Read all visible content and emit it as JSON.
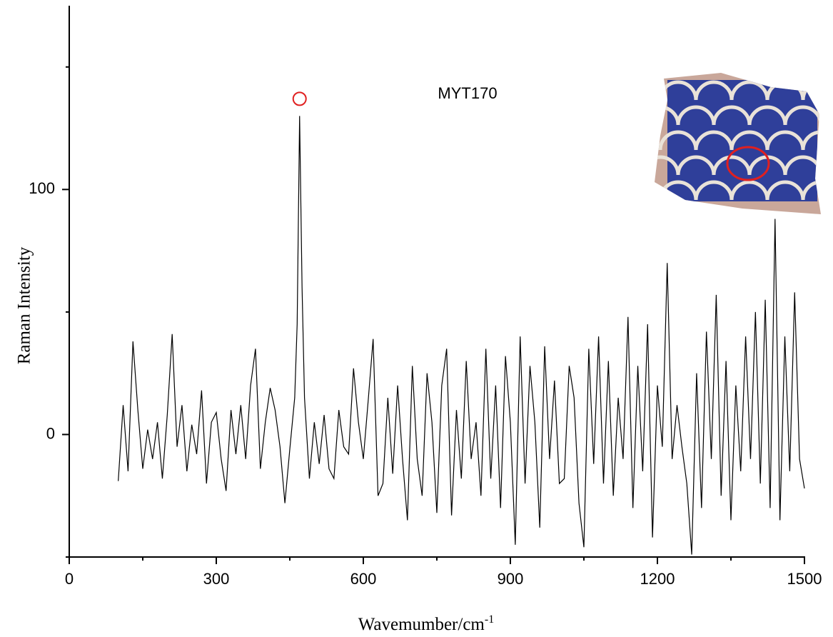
{
  "chart_data": {
    "type": "line",
    "annotation": "MYT170",
    "xlabel": "Wavemumber/cm",
    "xlabel_superscript": "-1",
    "ylabel": "Raman Intensity",
    "xlim": [
      0,
      1500
    ],
    "ylim": [
      -50,
      175
    ],
    "xticks": [
      0,
      300,
      600,
      900,
      1200,
      1500
    ],
    "xminorticks": [
      150,
      450,
      750,
      1050,
      1350
    ],
    "yticks": [
      0,
      100
    ],
    "yminorticks": [
      -50,
      50,
      150
    ],
    "highlight": {
      "x": 470,
      "y": 137,
      "color": "#e02020"
    },
    "series": [
      {
        "color": "#000000",
        "x": [
          100,
          110,
          120,
          130,
          140,
          150,
          160,
          170,
          180,
          190,
          200,
          210,
          220,
          230,
          240,
          250,
          260,
          270,
          280,
          290,
          300,
          310,
          320,
          330,
          340,
          350,
          360,
          370,
          380,
          390,
          400,
          410,
          420,
          430,
          440,
          450,
          460,
          465,
          470,
          475,
          480,
          490,
          500,
          510,
          520,
          530,
          540,
          550,
          560,
          570,
          580,
          590,
          600,
          610,
          620,
          630,
          640,
          650,
          660,
          670,
          680,
          690,
          700,
          710,
          720,
          730,
          740,
          750,
          760,
          770,
          780,
          790,
          800,
          810,
          820,
          830,
          840,
          850,
          860,
          870,
          880,
          890,
          900,
          910,
          920,
          930,
          940,
          950,
          960,
          970,
          980,
          990,
          1000,
          1010,
          1020,
          1030,
          1040,
          1050,
          1060,
          1070,
          1080,
          1090,
          1100,
          1110,
          1120,
          1130,
          1140,
          1150,
          1160,
          1170,
          1180,
          1190,
          1200,
          1210,
          1220,
          1230,
          1240,
          1250,
          1260,
          1270,
          1280,
          1290,
          1300,
          1310,
          1320,
          1330,
          1340,
          1350,
          1360,
          1370,
          1380,
          1390,
          1400,
          1410,
          1420,
          1430,
          1440,
          1450,
          1460,
          1470,
          1480,
          1490,
          1500
        ],
        "values": [
          -19,
          12,
          -15,
          38,
          10,
          -14,
          2,
          -10,
          5,
          -18,
          8,
          41,
          -5,
          12,
          -15,
          4,
          -8,
          18,
          -20,
          5,
          9,
          -10,
          -23,
          10,
          -8,
          12,
          -10,
          20,
          35,
          -14,
          5,
          19,
          10,
          -5,
          -28,
          -6,
          15,
          45,
          130,
          60,
          15,
          -18,
          5,
          -12,
          8,
          -14,
          -18,
          10,
          -5,
          -8,
          27,
          5,
          -10,
          14,
          39,
          -25,
          -20,
          15,
          -16,
          20,
          -10,
          -35,
          28,
          -10,
          -25,
          25,
          5,
          -32,
          20,
          35,
          -33,
          10,
          -18,
          30,
          -10,
          5,
          -25,
          35,
          -18,
          20,
          -30,
          32,
          5,
          -45,
          40,
          -20,
          28,
          5,
          -38,
          36,
          -10,
          22,
          -20,
          -18,
          28,
          15,
          -28,
          -46,
          35,
          -12,
          40,
          -20,
          30,
          -25,
          15,
          -10,
          48,
          -30,
          28,
          -15,
          45,
          -42,
          20,
          -5,
          70,
          -10,
          12,
          -5,
          -20,
          -49,
          25,
          -30,
          42,
          -10,
          57,
          -25,
          30,
          -35,
          20,
          -15,
          40,
          -10,
          50,
          -20,
          55,
          -30,
          88,
          -35,
          40,
          -15,
          58,
          -10,
          -22
        ]
      }
    ]
  }
}
